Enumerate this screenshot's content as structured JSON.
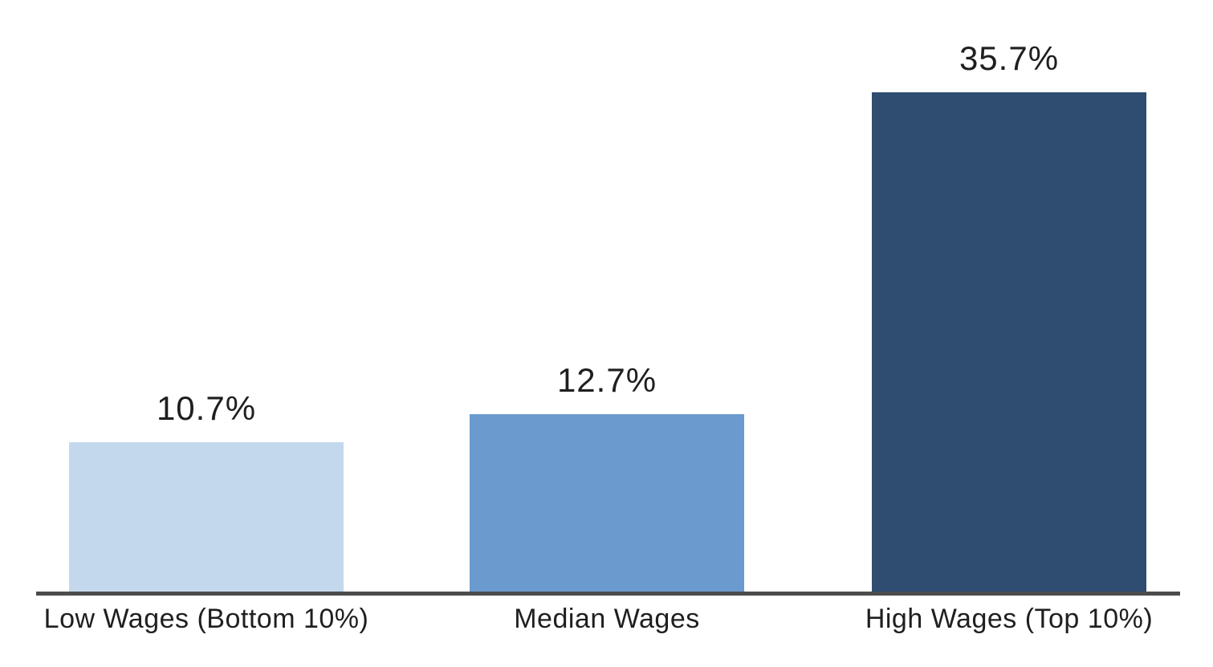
{
  "chart_data": {
    "type": "bar",
    "categories": [
      "Low Wages (Bottom 10%)",
      "Median Wages",
      "High Wages (Top 10%)"
    ],
    "values": [
      10.7,
      12.7,
      35.7
    ],
    "value_labels": [
      "10.7%",
      "12.7%",
      "35.7%"
    ],
    "title": "",
    "xlabel": "",
    "ylabel": "",
    "ylim": [
      0,
      38
    ],
    "grid": false,
    "legend": "none",
    "y_axis_visible": false,
    "bar_colors": [
      "#c3d8ec",
      "#6b9ace",
      "#2e4d71"
    ],
    "axis_line_color": "#4c4c4c",
    "text_color": "#1f1f1f",
    "background_color": "#ffffff"
  }
}
